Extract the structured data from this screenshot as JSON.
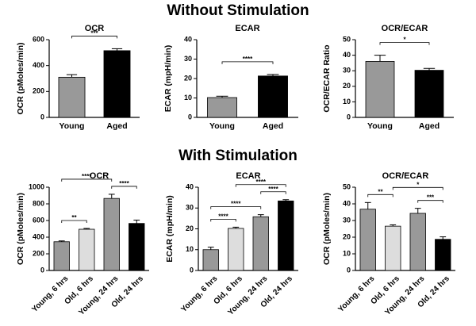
{
  "headings": [
    "Without Stimulation",
    "With Stimulation"
  ],
  "chart_data": [
    {
      "type": "bar",
      "title": "OCR",
      "ylabel": "OCR (pMoles/min)",
      "categories": [
        "Young",
        "Aged"
      ],
      "values": [
        310,
        515
      ],
      "errors": [
        20,
        15
      ],
      "colors": [
        "#999999",
        "#000000"
      ],
      "ylim": [
        0,
        600
      ],
      "yticks": [
        0,
        200,
        400,
        600
      ],
      "annotations": [
        {
          "from": 0,
          "to": 1,
          "label": "***"
        }
      ]
    },
    {
      "type": "bar",
      "title": "ECAR",
      "ylabel": "ECAR (mpH/min)",
      "categories": [
        "Young",
        "Aged"
      ],
      "values": [
        10.2,
        21.3
      ],
      "errors": [
        0.7,
        0.8
      ],
      "colors": [
        "#999999",
        "#000000"
      ],
      "ylim": [
        0,
        40
      ],
      "yticks": [
        0,
        10,
        20,
        30,
        40
      ],
      "annotations": [
        {
          "from": 0,
          "to": 1,
          "label": "****"
        }
      ]
    },
    {
      "type": "bar",
      "title": "OCR/ECAR",
      "ylabel": "OCR/ECAR Ratio",
      "categories": [
        "Young",
        "Aged"
      ],
      "values": [
        36,
        30.3
      ],
      "errors": [
        4,
        1.2
      ],
      "colors": [
        "#999999",
        "#000000"
      ],
      "ylim": [
        0,
        50
      ],
      "yticks": [
        0,
        10,
        20,
        30,
        40,
        50
      ],
      "annotations": [
        {
          "from": 0,
          "to": 1,
          "label": "*"
        }
      ]
    },
    {
      "type": "bar",
      "title": "OCR",
      "ylabel": "OCR (pMoles/min)",
      "categories": [
        "Young, 6 hrs",
        "Old, 6 hrs",
        "Young, 24 hrs",
        "Old, 24 hrs"
      ],
      "values": [
        345,
        495,
        865,
        565
      ],
      "errors": [
        10,
        10,
        50,
        40
      ],
      "colors": [
        "#999999",
        "#dddddd",
        "#999999",
        "#000000"
      ],
      "ylim": [
        0,
        1000
      ],
      "yticks": [
        0,
        200,
        400,
        600,
        800,
        1000
      ],
      "annotations": [
        {
          "from": 0,
          "to": 1,
          "label": "**"
        },
        {
          "from": 2,
          "to": 3,
          "label": "****"
        },
        {
          "from": 0,
          "to": 2,
          "label": "****"
        }
      ]
    },
    {
      "type": "bar",
      "title": "ECAR",
      "ylabel": "ECAR (mpH/min)",
      "categories": [
        "Young, 6 hrs",
        "Old, 6 hrs",
        "Young, 24 hrs",
        "Old, 24 hrs"
      ],
      "values": [
        10,
        20.2,
        25.8,
        33.4
      ],
      "errors": [
        1.2,
        0.6,
        1,
        0.6
      ],
      "colors": [
        "#999999",
        "#dddddd",
        "#999999",
        "#000000"
      ],
      "ylim": [
        0,
        40
      ],
      "yticks": [
        0,
        10,
        20,
        30,
        40
      ],
      "annotations": [
        {
          "from": 0,
          "to": 1,
          "label": "****"
        },
        {
          "from": 2,
          "to": 3,
          "label": "****"
        },
        {
          "from": 0,
          "to": 2,
          "label": "****"
        },
        {
          "from": 1,
          "to": 3,
          "label": "****"
        }
      ]
    },
    {
      "type": "bar",
      "title": "OCR/ECAR",
      "ylabel": "OCR (pMoles/min)",
      "categories": [
        "Young, 6 hrs",
        "Old, 6 hrs",
        "Young, 24 hrs",
        "Old, 24 hrs"
      ],
      "values": [
        36.8,
        26.6,
        34.3,
        18.7
      ],
      "errors": [
        4,
        0.8,
        3,
        1.5
      ],
      "colors": [
        "#999999",
        "#dddddd",
        "#999999",
        "#000000"
      ],
      "ylim": [
        0,
        50
      ],
      "yticks": [
        0,
        10,
        20,
        30,
        40,
        50
      ],
      "annotations": [
        {
          "from": 0,
          "to": 1,
          "label": "**"
        },
        {
          "from": 2,
          "to": 3,
          "label": "***"
        },
        {
          "from": 1,
          "to": 3,
          "label": "*"
        }
      ]
    }
  ]
}
